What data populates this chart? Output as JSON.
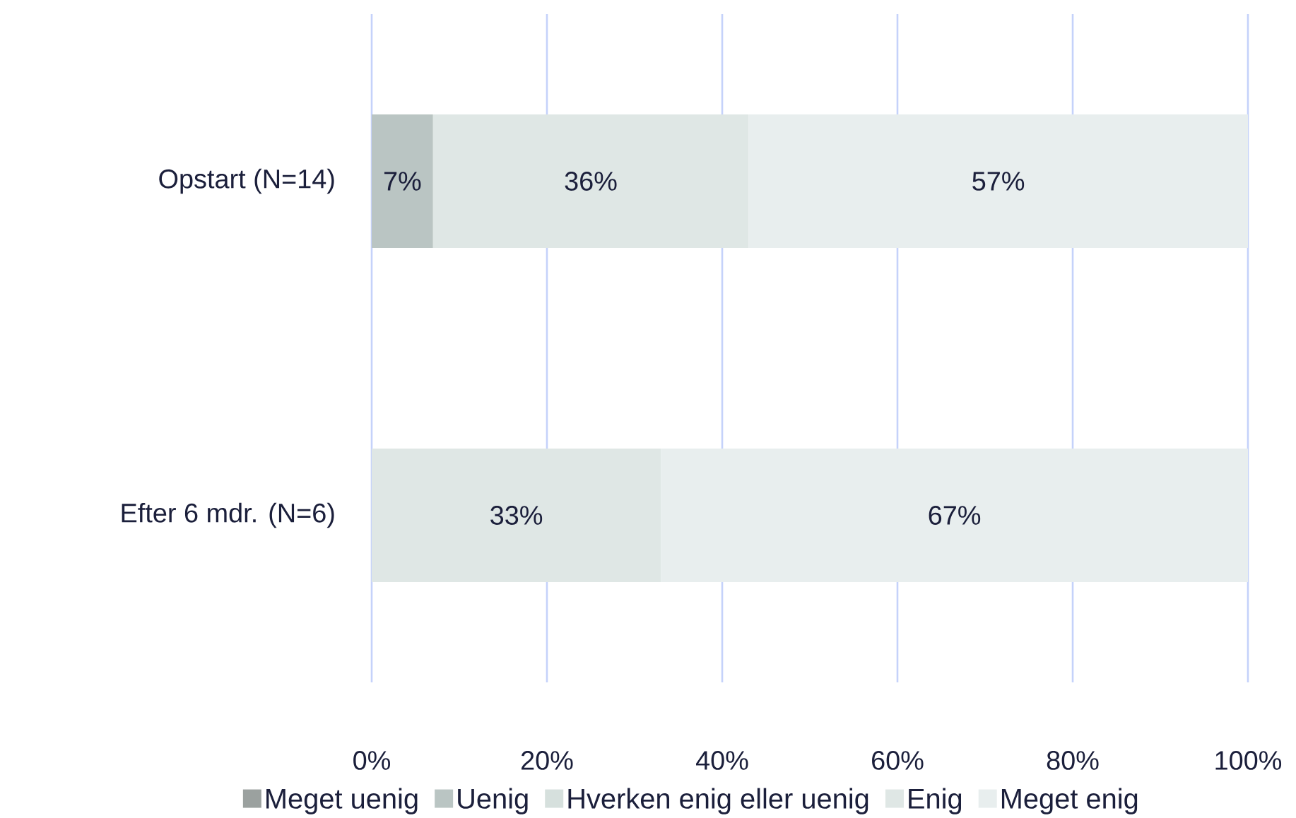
{
  "chart_data": {
    "type": "bar",
    "orientation": "horizontal",
    "stacked": true,
    "categories": [
      "Opstart (N=14)",
      "Efter 6 mdr. (N=6)"
    ],
    "series": [
      {
        "name": "Meget uenig",
        "color": "#9ba19f",
        "values": [
          0,
          0
        ]
      },
      {
        "name": "Uenig",
        "color": "#bac5c3",
        "values": [
          7,
          0
        ],
        "value_labels": [
          "7%",
          null
        ]
      },
      {
        "name": "Hverken enig eller uenig",
        "color": "#d6e0dd",
        "values": [
          0,
          0
        ]
      },
      {
        "name": "Enig",
        "color": "#dfe7e5",
        "values": [
          36,
          33
        ],
        "value_labels": [
          "36%",
          "33%"
        ]
      },
      {
        "name": "Meget enig",
        "color": "#e8eeee",
        "values": [
          57,
          67
        ],
        "value_labels": [
          "57%",
          "67%"
        ]
      }
    ],
    "xlim": [
      0,
      100
    ],
    "xticks": [
      {
        "value": 0,
        "label": "0%"
      },
      {
        "value": 20,
        "label": "20%"
      },
      {
        "value": 40,
        "label": "40%"
      },
      {
        "value": 60,
        "label": "60%"
      },
      {
        "value": 80,
        "label": "80%"
      },
      {
        "value": 100,
        "label": "100%"
      }
    ],
    "grid": "x",
    "legend": "bottom"
  }
}
